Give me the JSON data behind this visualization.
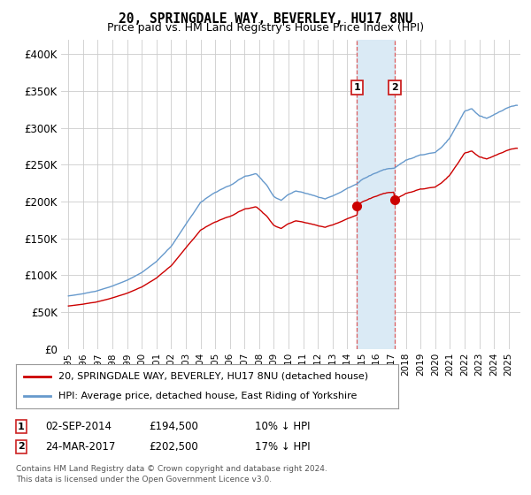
{
  "title": "20, SPRINGDALE WAY, BEVERLEY, HU17 8NU",
  "subtitle": "Price paid vs. HM Land Registry's House Price Index (HPI)",
  "legend_line1": "20, SPRINGDALE WAY, BEVERLEY, HU17 8NU (detached house)",
  "legend_line2": "HPI: Average price, detached house, East Riding of Yorkshire",
  "annotation1_label": "1",
  "annotation1_date_str": "02-SEP-2014",
  "annotation1_price_str": "£194,500",
  "annotation1_hpi_str": "10% ↓ HPI",
  "annotation2_label": "2",
  "annotation2_date_str": "24-MAR-2017",
  "annotation2_price_str": "£202,500",
  "annotation2_hpi_str": "17% ↓ HPI",
  "sale1_price": 194500,
  "sale2_price": 202500,
  "sale1_year": 2014.67,
  "sale2_year": 2017.23,
  "red_color": "#cc0000",
  "blue_color": "#6699cc",
  "shade_color": "#daeaf5",
  "annotation_box_color": "#cc2222",
  "footer_line1": "Contains HM Land Registry data © Crown copyright and database right 2024.",
  "footer_line2": "This data is licensed under the Open Government Licence v3.0.",
  "ylim": [
    0,
    420000
  ],
  "yticks": [
    0,
    50000,
    100000,
    150000,
    200000,
    250000,
    300000,
    350000,
    400000
  ],
  "ytick_labels": [
    "£0",
    "£50K",
    "£100K",
    "£150K",
    "£200K",
    "£250K",
    "£300K",
    "£350K",
    "£400K"
  ],
  "xmin": 1994.5,
  "xmax": 2025.8
}
